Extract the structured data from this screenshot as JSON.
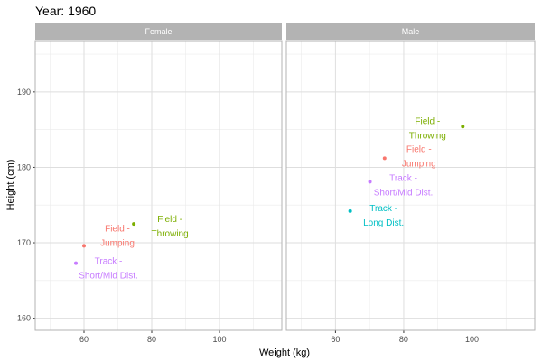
{
  "chart_data": {
    "type": "scatter",
    "title": "Year: 1960",
    "xlabel": "Weight (kg)",
    "ylabel": "Height (cm)",
    "xlim": [
      45.6,
      118.4
    ],
    "ylim": [
      158.4,
      196.8
    ],
    "xticks": [
      60,
      80,
      100
    ],
    "yticks": [
      160,
      170,
      180,
      190
    ],
    "grid": true,
    "legend": "none",
    "colors": {
      "Field - Jumping": "#F8766D",
      "Field - Throwing": "#7CAE00",
      "Track - Long Dist.": "#00BFC4",
      "Track - Short/Mid Dist.": "#C77CFF"
    },
    "panels": [
      {
        "strip": "Female",
        "points": [
          {
            "group": "Field - Jumping",
            "label_lines": [
              "Field -",
              "Jumping"
            ],
            "x": 60.0,
            "y": 169.6
          },
          {
            "group": "Track - Short/Mid Dist.",
            "label_lines": [
              "Track -",
              "Short/Mid Dist."
            ],
            "x": 57.6,
            "y": 167.3
          },
          {
            "group": "Field - Throwing",
            "label_lines": [
              "Field -",
              "Throwing"
            ],
            "x": 74.7,
            "y": 172.5
          }
        ]
      },
      {
        "strip": "Male",
        "points": [
          {
            "group": "Field - Throwing",
            "label_lines": [
              "Field -",
              "Throwing"
            ],
            "x": 97.3,
            "y": 185.4
          },
          {
            "group": "Field - Jumping",
            "label_lines": [
              "Field -",
              "Jumping"
            ],
            "x": 74.4,
            "y": 181.2
          },
          {
            "group": "Track - Short/Mid Dist.",
            "label_lines": [
              "Track -",
              "Short/Mid Dist."
            ],
            "x": 70.1,
            "y": 178.1
          },
          {
            "group": "Track - Long Dist.",
            "label_lines": [
              "Track -",
              "Long Dist."
            ],
            "x": 64.3,
            "y": 174.2
          }
        ]
      }
    ]
  }
}
